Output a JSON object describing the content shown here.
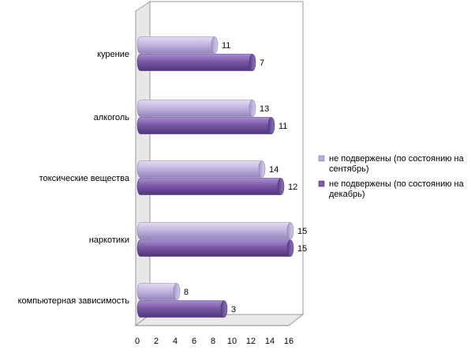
{
  "chart_data": {
    "type": "bar",
    "orientation": "horizontal",
    "three_d": true,
    "categories": [
      "курение",
      "алкоголь",
      "токсические вещества",
      "наркотики",
      "компьютерная зависимость"
    ],
    "series": [
      {
        "name": "не подвержены (по состоянию на сентябрь)",
        "color": "#b9acd8",
        "values": [
          8,
          12,
          13,
          16,
          4
        ],
        "labels": [
          "11",
          "13",
          "14",
          "15",
          "8"
        ]
      },
      {
        "name": "не подвержены (по состоянию на декабрь)",
        "color": "#7a5aa5",
        "values": [
          12,
          14,
          15,
          16,
          9
        ],
        "labels": [
          "7",
          "11",
          "12",
          "15",
          "3"
        ]
      }
    ],
    "xlim": [
      0,
      16
    ],
    "xticks": [
      "0",
      "2",
      "4",
      "6",
      "8",
      "10",
      "12",
      "14",
      "16"
    ],
    "grid": false,
    "legend_position": "right"
  }
}
